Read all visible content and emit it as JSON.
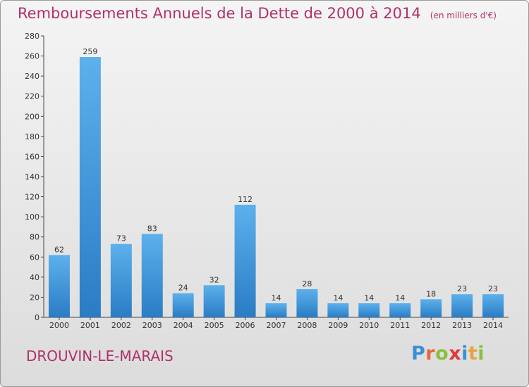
{
  "header": {
    "title": "Remboursements Annuels de la Dette de 2000 à 2014",
    "subtitle": "(en milliers d'€)"
  },
  "footer": {
    "town": "DROUVIN-LE-MARAIS",
    "logo_text": "Proxiti",
    "logo_letters": [
      {
        "char": "P",
        "color": "#3a8fd6"
      },
      {
        "char": "r",
        "color": "#e8663b"
      },
      {
        "char": "o",
        "color": "#8bbf3a"
      },
      {
        "char": "x",
        "color": "#e03a3a"
      },
      {
        "char": "i",
        "color": "#3a8fd6"
      },
      {
        "char": "t",
        "color": "#e8a43b"
      },
      {
        "char": "i",
        "color": "#8bbf3a"
      }
    ]
  },
  "chart_data": {
    "type": "bar",
    "title": "Remboursements Annuels de la Dette de 2000 à 2014",
    "subtitle": "(en milliers d'€)",
    "categories": [
      "2000",
      "2001",
      "2002",
      "2003",
      "2004",
      "2005",
      "2006",
      "2007",
      "2008",
      "2009",
      "2010",
      "2011",
      "2012",
      "2013",
      "2014"
    ],
    "values": [
      62,
      259,
      73,
      83,
      24,
      32,
      112,
      14,
      28,
      14,
      14,
      14,
      18,
      23,
      23
    ],
    "ylim": [
      0,
      280
    ],
    "yticks": [
      0,
      20,
      40,
      60,
      80,
      100,
      120,
      140,
      160,
      180,
      200,
      220,
      240,
      260,
      280
    ],
    "grid": false,
    "bar_color": "#4a9fe0"
  }
}
